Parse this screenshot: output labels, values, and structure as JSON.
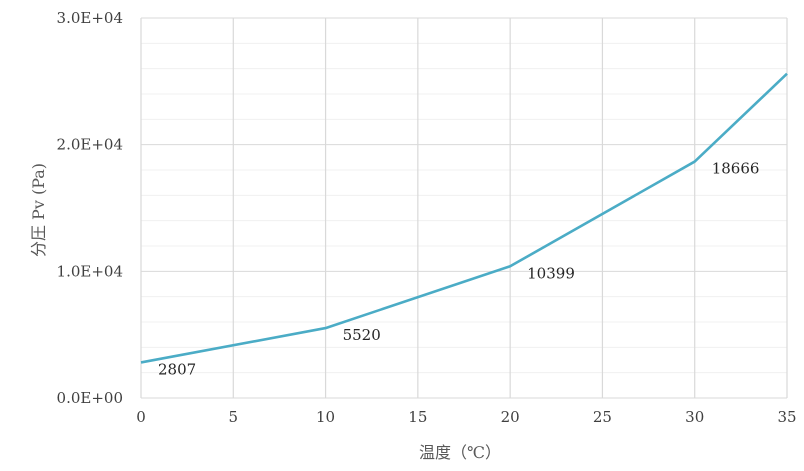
{
  "chart_data": {
    "type": "line",
    "title": "",
    "xlabel": "温度（℃）",
    "ylabel": "分圧 Pv (Pa)",
    "xlim": [
      0,
      35
    ],
    "ylim": [
      0,
      30000
    ],
    "x_ticks": [
      0,
      5,
      10,
      15,
      20,
      25,
      30,
      35
    ],
    "x_tick_labels": [
      "0",
      "5",
      "10",
      "15",
      "20",
      "25",
      "30",
      "35"
    ],
    "y_ticks": [
      0,
      10000,
      20000,
      30000
    ],
    "y_tick_labels": [
      "0.0E+00",
      "1.0E+04",
      "2.0E+04",
      "3.0E+04"
    ],
    "grid": true,
    "series": [
      {
        "color": "#4BACC6",
        "x": [
          0,
          10,
          20,
          30,
          35
        ],
        "y": [
          2807,
          5520,
          10399,
          18666,
          25600
        ]
      }
    ],
    "data_labels": [
      {
        "x": 0,
        "y": 2807,
        "text": "2807"
      },
      {
        "x": 10,
        "y": 5520,
        "text": "5520"
      },
      {
        "x": 20,
        "y": 10399,
        "text": "10399"
      },
      {
        "x": 30,
        "y": 18666,
        "text": "18666"
      }
    ]
  }
}
